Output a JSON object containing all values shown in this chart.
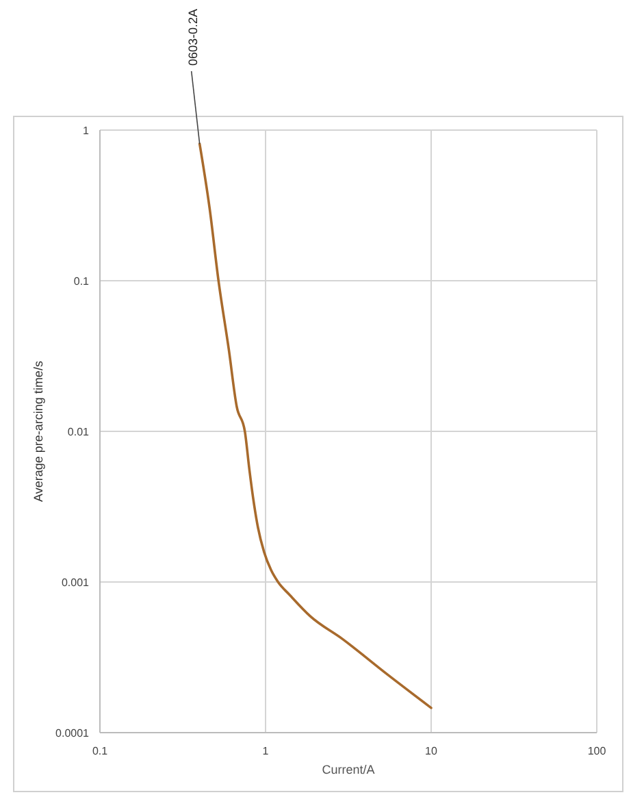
{
  "chart_data": {
    "type": "line",
    "xlabel": "Current/A",
    "ylabel": "Average pre-arcing time/s",
    "log": "xy",
    "grid": true,
    "xlim": [
      0.1,
      100
    ],
    "xticks": [
      0.1,
      1,
      10,
      100
    ],
    "ylim": [
      0.0001,
      1
    ],
    "yticks": [
      0.0001,
      0.001,
      0.01,
      0.1,
      1
    ],
    "series": [
      {
        "color": "#a86a2c",
        "x": [
          0.4,
          0.46,
          0.52,
          0.6,
          0.67,
          0.75,
          0.8,
          0.84,
          0.9,
          0.98,
          1.08,
          1.19,
          1.4,
          1.87,
          2.9,
          5.4,
          10
        ],
        "values": [
          0.81,
          0.3,
          0.1,
          0.035,
          0.0146,
          0.01,
          0.0055,
          0.00366,
          0.0023,
          0.00158,
          0.0012,
          0.001,
          0.00082,
          0.00059,
          0.00042,
          0.000245,
          0.000146
        ]
      }
    ],
    "annotations": [
      {
        "text": "0603-0.2A",
        "x": 0.4,
        "y": 0.81
      }
    ]
  }
}
